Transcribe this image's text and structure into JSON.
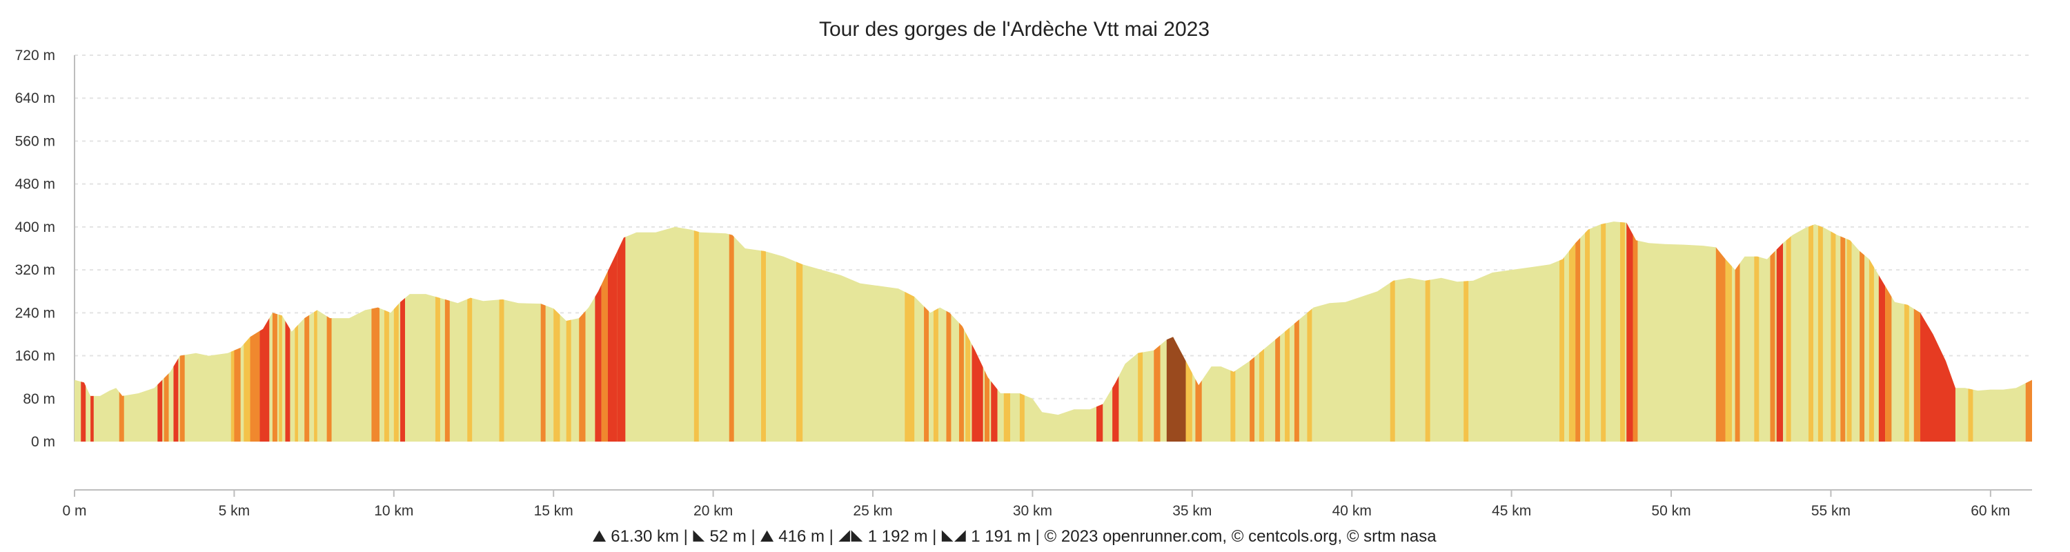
{
  "chart_data": {
    "type": "area",
    "title": "Tour des gorges de l'Ardèche Vtt mai 2023",
    "xlabel": "",
    "ylabel": "",
    "x_unit": "km",
    "y_unit": "m",
    "xlim": [
      0,
      61.3
    ],
    "ylim": [
      0,
      720
    ],
    "grid": true,
    "x_ticks": [
      {
        "value": 0,
        "label": "0 m"
      },
      {
        "value": 5,
        "label": "5 km"
      },
      {
        "value": 10,
        "label": "10 km"
      },
      {
        "value": 15,
        "label": "15 km"
      },
      {
        "value": 20,
        "label": "20 km"
      },
      {
        "value": 25,
        "label": "25 km"
      },
      {
        "value": 30,
        "label": "30 km"
      },
      {
        "value": 35,
        "label": "35 km"
      },
      {
        "value": 40,
        "label": "40 km"
      },
      {
        "value": 45,
        "label": "45 km"
      },
      {
        "value": 50,
        "label": "50 km"
      },
      {
        "value": 55,
        "label": "55 km"
      },
      {
        "value": 60,
        "label": "60 km"
      }
    ],
    "y_ticks": [
      {
        "value": 0,
        "label": "0 m"
      },
      {
        "value": 80,
        "label": "80 m"
      },
      {
        "value": 160,
        "label": "160 m"
      },
      {
        "value": 240,
        "label": "240 m"
      },
      {
        "value": 320,
        "label": "320 m"
      },
      {
        "value": 400,
        "label": "400 m"
      },
      {
        "value": 480,
        "label": "480 m"
      },
      {
        "value": 560,
        "label": "560 m"
      },
      {
        "value": 640,
        "label": "640 m"
      },
      {
        "value": 720,
        "label": "720 m"
      }
    ],
    "colors": {
      "base": "#e6e69a",
      "light": "#f4c24a",
      "medium": "#f0882e",
      "steep": "#e63b22",
      "very_steep": "#9a4a1e"
    },
    "profile": [
      [
        0.0,
        115
      ],
      [
        0.3,
        110
      ],
      [
        0.5,
        85
      ],
      [
        0.8,
        85
      ],
      [
        1.1,
        95
      ],
      [
        1.3,
        100
      ],
      [
        1.5,
        85
      ],
      [
        2.0,
        90
      ],
      [
        2.5,
        100
      ],
      [
        3.0,
        130
      ],
      [
        3.3,
        160
      ],
      [
        3.8,
        165
      ],
      [
        4.2,
        160
      ],
      [
        4.8,
        165
      ],
      [
        5.2,
        175
      ],
      [
        5.5,
        195
      ],
      [
        5.9,
        210
      ],
      [
        6.2,
        240
      ],
      [
        6.5,
        235
      ],
      [
        6.8,
        205
      ],
      [
        7.2,
        230
      ],
      [
        7.6,
        245
      ],
      [
        8.0,
        230
      ],
      [
        8.6,
        230
      ],
      [
        9.1,
        245
      ],
      [
        9.5,
        250
      ],
      [
        9.9,
        240
      ],
      [
        10.2,
        260
      ],
      [
        10.5,
        275
      ],
      [
        11.0,
        275
      ],
      [
        11.6,
        265
      ],
      [
        12.0,
        258
      ],
      [
        12.4,
        268
      ],
      [
        12.8,
        262
      ],
      [
        13.4,
        265
      ],
      [
        13.9,
        258
      ],
      [
        14.6,
        257
      ],
      [
        15.0,
        248
      ],
      [
        15.4,
        225
      ],
      [
        15.8,
        230
      ],
      [
        16.1,
        250
      ],
      [
        16.4,
        280
      ],
      [
        16.8,
        330
      ],
      [
        17.0,
        355
      ],
      [
        17.2,
        380
      ],
      [
        17.6,
        390
      ],
      [
        18.2,
        390
      ],
      [
        18.8,
        400
      ],
      [
        19.3,
        395
      ],
      [
        19.6,
        390
      ],
      [
        20.4,
        388
      ],
      [
        20.6,
        385
      ],
      [
        21.0,
        360
      ],
      [
        21.6,
        355
      ],
      [
        22.2,
        345
      ],
      [
        22.8,
        330
      ],
      [
        23.4,
        320
      ],
      [
        24.0,
        310
      ],
      [
        24.6,
        295
      ],
      [
        25.2,
        290
      ],
      [
        25.8,
        285
      ],
      [
        26.3,
        270
      ],
      [
        26.8,
        240
      ],
      [
        27.1,
        250
      ],
      [
        27.4,
        240
      ],
      [
        27.8,
        215
      ],
      [
        28.2,
        170
      ],
      [
        28.6,
        120
      ],
      [
        29.0,
        90
      ],
      [
        29.6,
        90
      ],
      [
        30.0,
        80
      ],
      [
        30.3,
        55
      ],
      [
        30.8,
        50
      ],
      [
        31.3,
        60
      ],
      [
        31.8,
        60
      ],
      [
        32.2,
        70
      ],
      [
        32.6,
        110
      ],
      [
        32.9,
        145
      ],
      [
        33.3,
        165
      ],
      [
        33.8,
        170
      ],
      [
        34.2,
        190
      ],
      [
        34.4,
        195
      ],
      [
        34.8,
        150
      ],
      [
        35.2,
        105
      ],
      [
        35.6,
        140
      ],
      [
        35.9,
        140
      ],
      [
        36.3,
        130
      ],
      [
        36.8,
        150
      ],
      [
        37.2,
        170
      ],
      [
        37.6,
        190
      ],
      [
        38.0,
        210
      ],
      [
        38.4,
        230
      ],
      [
        38.8,
        250
      ],
      [
        39.3,
        258
      ],
      [
        39.8,
        260
      ],
      [
        40.3,
        270
      ],
      [
        40.8,
        280
      ],
      [
        41.3,
        300
      ],
      [
        41.8,
        305
      ],
      [
        42.3,
        300
      ],
      [
        42.8,
        305
      ],
      [
        43.3,
        298
      ],
      [
        43.8,
        300
      ],
      [
        44.4,
        315
      ],
      [
        45.0,
        320
      ],
      [
        45.6,
        325
      ],
      [
        46.2,
        330
      ],
      [
        46.6,
        340
      ],
      [
        47.0,
        370
      ],
      [
        47.4,
        395
      ],
      [
        47.8,
        405
      ],
      [
        48.2,
        410
      ],
      [
        48.6,
        408
      ],
      [
        48.9,
        375
      ],
      [
        49.3,
        370
      ],
      [
        49.8,
        368
      ],
      [
        50.4,
        367
      ],
      [
        51.0,
        365
      ],
      [
        51.4,
        362
      ],
      [
        51.7,
        340
      ],
      [
        52.0,
        320
      ],
      [
        52.3,
        345
      ],
      [
        52.7,
        345
      ],
      [
        53.0,
        340
      ],
      [
        53.5,
        370
      ],
      [
        53.8,
        385
      ],
      [
        54.2,
        398
      ],
      [
        54.5,
        405
      ],
      [
        54.8,
        398
      ],
      [
        55.2,
        385
      ],
      [
        55.6,
        375
      ],
      [
        55.9,
        355
      ],
      [
        56.2,
        340
      ],
      [
        56.6,
        300
      ],
      [
        57.0,
        260
      ],
      [
        57.4,
        255
      ],
      [
        57.8,
        240
      ],
      [
        58.2,
        200
      ],
      [
        58.6,
        150
      ],
      [
        58.9,
        100
      ],
      [
        59.2,
        100
      ],
      [
        59.6,
        95
      ],
      [
        60.0,
        97
      ],
      [
        60.4,
        97
      ],
      [
        60.8,
        100
      ],
      [
        61.3,
        115
      ]
    ],
    "slope_bands": [
      [
        0.2,
        0.35,
        "steep"
      ],
      [
        0.5,
        0.6,
        "steep"
      ],
      [
        1.4,
        1.55,
        "medium"
      ],
      [
        2.6,
        2.75,
        "steep"
      ],
      [
        2.8,
        2.95,
        "medium"
      ],
      [
        3.1,
        3.25,
        "steep"
      ],
      [
        3.3,
        3.45,
        "medium"
      ],
      [
        4.9,
        5.05,
        "light"
      ],
      [
        5.0,
        5.2,
        "medium"
      ],
      [
        5.3,
        5.5,
        "light"
      ],
      [
        5.5,
        5.8,
        "medium"
      ],
      [
        5.8,
        6.1,
        "steep"
      ],
      [
        6.2,
        6.35,
        "medium"
      ],
      [
        6.4,
        6.5,
        "light"
      ],
      [
        6.6,
        6.75,
        "steep"
      ],
      [
        6.9,
        7.0,
        "light"
      ],
      [
        7.2,
        7.35,
        "medium"
      ],
      [
        7.5,
        7.6,
        "light"
      ],
      [
        7.9,
        8.05,
        "medium"
      ],
      [
        9.3,
        9.55,
        "medium"
      ],
      [
        9.7,
        9.85,
        "light"
      ],
      [
        10.0,
        10.15,
        "light"
      ],
      [
        10.2,
        10.35,
        "steep"
      ],
      [
        11.3,
        11.45,
        "light"
      ],
      [
        11.6,
        11.75,
        "medium"
      ],
      [
        12.3,
        12.45,
        "light"
      ],
      [
        13.3,
        13.45,
        "light"
      ],
      [
        14.6,
        14.75,
        "medium"
      ],
      [
        15.0,
        15.2,
        "light"
      ],
      [
        15.4,
        15.55,
        "light"
      ],
      [
        15.8,
        16.0,
        "medium"
      ],
      [
        16.3,
        16.5,
        "steep"
      ],
      [
        16.5,
        16.7,
        "medium"
      ],
      [
        16.7,
        17.0,
        "steep"
      ],
      [
        17.0,
        17.25,
        "steep"
      ],
      [
        19.4,
        19.55,
        "light"
      ],
      [
        20.5,
        20.65,
        "medium"
      ],
      [
        21.5,
        21.65,
        "light"
      ],
      [
        22.6,
        22.8,
        "light"
      ],
      [
        26.0,
        26.3,
        "light"
      ],
      [
        26.6,
        26.75,
        "medium"
      ],
      [
        26.9,
        27.05,
        "light"
      ],
      [
        27.3,
        27.45,
        "medium"
      ],
      [
        27.7,
        27.85,
        "medium"
      ],
      [
        27.9,
        28.05,
        "light"
      ],
      [
        28.1,
        28.45,
        "steep"
      ],
      [
        28.5,
        28.65,
        "medium"
      ],
      [
        28.7,
        28.9,
        "steep"
      ],
      [
        29.1,
        29.3,
        "light"
      ],
      [
        29.6,
        29.75,
        "light"
      ],
      [
        32.0,
        32.2,
        "steep"
      ],
      [
        32.5,
        32.7,
        "steep"
      ],
      [
        33.3,
        33.45,
        "light"
      ],
      [
        33.8,
        34.0,
        "medium"
      ],
      [
        34.2,
        34.8,
        "very_steep"
      ],
      [
        34.8,
        35.0,
        "light"
      ],
      [
        35.1,
        35.3,
        "medium"
      ],
      [
        36.2,
        36.35,
        "light"
      ],
      [
        36.8,
        36.95,
        "medium"
      ],
      [
        37.1,
        37.25,
        "light"
      ],
      [
        37.6,
        37.75,
        "medium"
      ],
      [
        37.9,
        38.05,
        "light"
      ],
      [
        38.2,
        38.35,
        "medium"
      ],
      [
        38.6,
        38.75,
        "light"
      ],
      [
        41.2,
        41.35,
        "light"
      ],
      [
        42.3,
        42.45,
        "light"
      ],
      [
        43.5,
        43.65,
        "light"
      ],
      [
        46.5,
        46.65,
        "light"
      ],
      [
        46.8,
        47.0,
        "light"
      ],
      [
        47.0,
        47.15,
        "medium"
      ],
      [
        47.3,
        47.45,
        "light"
      ],
      [
        47.8,
        47.95,
        "light"
      ],
      [
        48.4,
        48.55,
        "light"
      ],
      [
        48.6,
        48.8,
        "steep"
      ],
      [
        48.8,
        48.95,
        "medium"
      ],
      [
        51.4,
        51.7,
        "medium"
      ],
      [
        51.7,
        51.9,
        "light"
      ],
      [
        52.0,
        52.15,
        "medium"
      ],
      [
        52.6,
        52.75,
        "light"
      ],
      [
        53.1,
        53.25,
        "medium"
      ],
      [
        53.3,
        53.5,
        "steep"
      ],
      [
        53.6,
        53.75,
        "light"
      ],
      [
        54.3,
        54.45,
        "light"
      ],
      [
        54.6,
        54.75,
        "light"
      ],
      [
        55.0,
        55.15,
        "light"
      ],
      [
        55.3,
        55.45,
        "medium"
      ],
      [
        55.5,
        55.65,
        "light"
      ],
      [
        55.9,
        56.05,
        "medium"
      ],
      [
        56.2,
        56.35,
        "light"
      ],
      [
        56.5,
        56.7,
        "steep"
      ],
      [
        56.7,
        56.9,
        "medium"
      ],
      [
        57.3,
        57.45,
        "light"
      ],
      [
        57.6,
        57.8,
        "medium"
      ],
      [
        57.8,
        58.9,
        "steep"
      ],
      [
        59.3,
        59.45,
        "light"
      ],
      [
        61.1,
        61.3,
        "medium"
      ]
    ]
  },
  "footer": {
    "stat_distance": "61.30 km",
    "stat_min_alt": "52 m",
    "stat_max_alt": "416 m",
    "stat_ascent": "1 192 m",
    "stat_descent": "1 191 m",
    "separator": "|",
    "credits": "© 2023 openrunner.com, © centcols.org, © srtm nasa"
  }
}
